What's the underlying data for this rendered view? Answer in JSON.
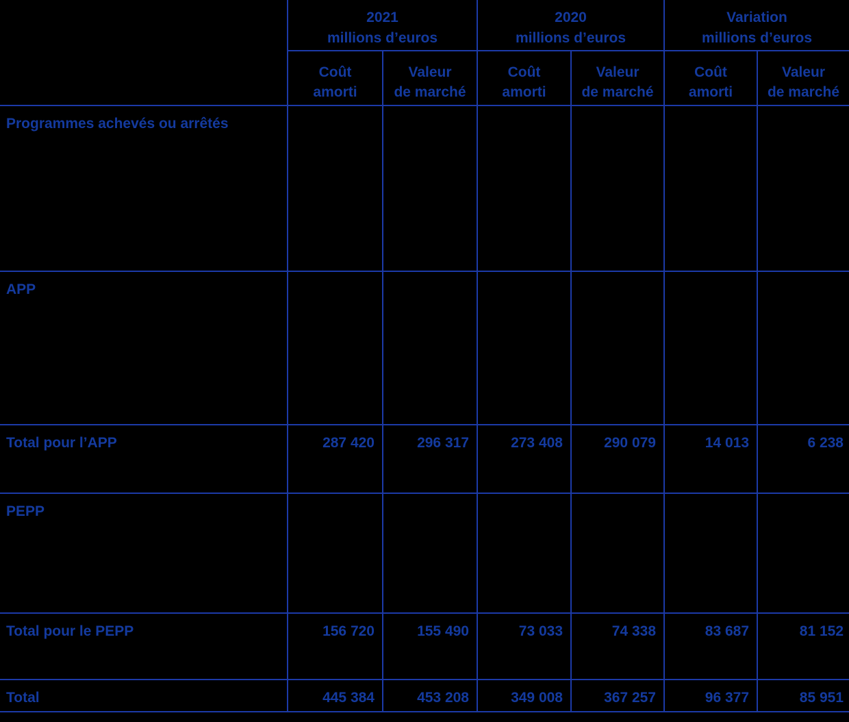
{
  "colors": {
    "text": "#143a9e",
    "line": "#1c3aa8",
    "background": "#000000"
  },
  "group_headers": [
    {
      "title": "2021",
      "subtitle": "millions d’euros"
    },
    {
      "title": "2020",
      "subtitle": "millions d’euros"
    },
    {
      "title": "Variation",
      "subtitle": "millions d’euros"
    }
  ],
  "sub_headers": [
    {
      "line1": "Coût",
      "line2": "amorti"
    },
    {
      "line1": "Valeur",
      "line2": "de marché"
    },
    {
      "line1": "Coût",
      "line2": "amorti"
    },
    {
      "line1": "Valeur",
      "line2": "de marché"
    },
    {
      "line1": "Coût",
      "line2": "amorti"
    },
    {
      "line1": "Valeur",
      "line2": "de marché"
    }
  ],
  "rows": [
    {
      "label": "Programmes achevés ou arrêtés",
      "values": [
        "",
        "",
        "",
        "",
        "",
        ""
      ]
    },
    {
      "label": "APP",
      "values": [
        "",
        "",
        "",
        "",
        "",
        ""
      ]
    },
    {
      "label": "Total pour l’APP",
      "values": [
        "287 420",
        "296 317",
        "273 408",
        "290 079",
        "14 013",
        "6 238"
      ]
    },
    {
      "label": "PEPP",
      "values": [
        "",
        "",
        "",
        "",
        "",
        ""
      ]
    },
    {
      "label": "Total pour le PEPP",
      "values": [
        "156 720",
        "155 490",
        "73 033",
        "74 338",
        "83 687",
        "81 152"
      ]
    },
    {
      "label": "Total",
      "values": [
        "445 384",
        "453 208",
        "349 008",
        "367 257",
        "96 377",
        "85 951"
      ]
    }
  ]
}
